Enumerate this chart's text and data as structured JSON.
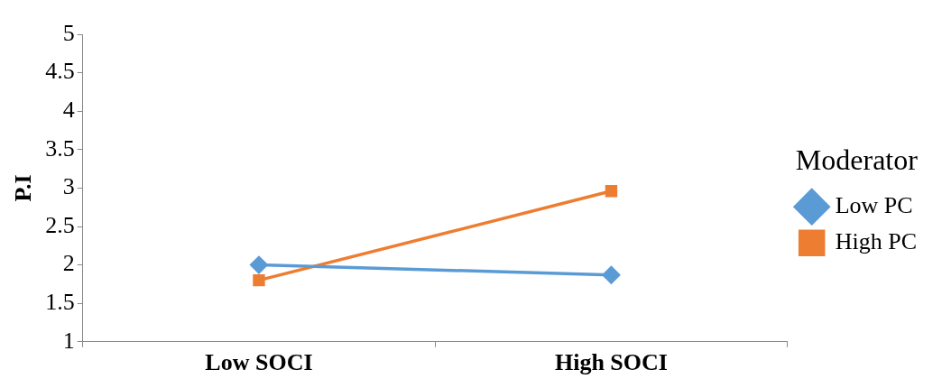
{
  "chart_data": {
    "type": "line",
    "ylabel": "P.I",
    "legend_title": "Moderator",
    "categories": [
      "Low SOCI",
      "High SOCI"
    ],
    "series": [
      {
        "name": "Low PC",
        "color": "#5b9bd5",
        "values": [
          2.0,
          1.87
        ],
        "marker": "diamond"
      },
      {
        "name": "High PC",
        "color": "#ed7d31",
        "values": [
          1.8,
          2.96
        ],
        "marker": "square"
      }
    ],
    "ylim": [
      1,
      5
    ],
    "yticks": [
      1,
      1.5,
      2,
      2.5,
      3,
      3.5,
      4,
      4.5,
      5
    ],
    "grid": false,
    "legend": "right",
    "line_style": "solid"
  }
}
